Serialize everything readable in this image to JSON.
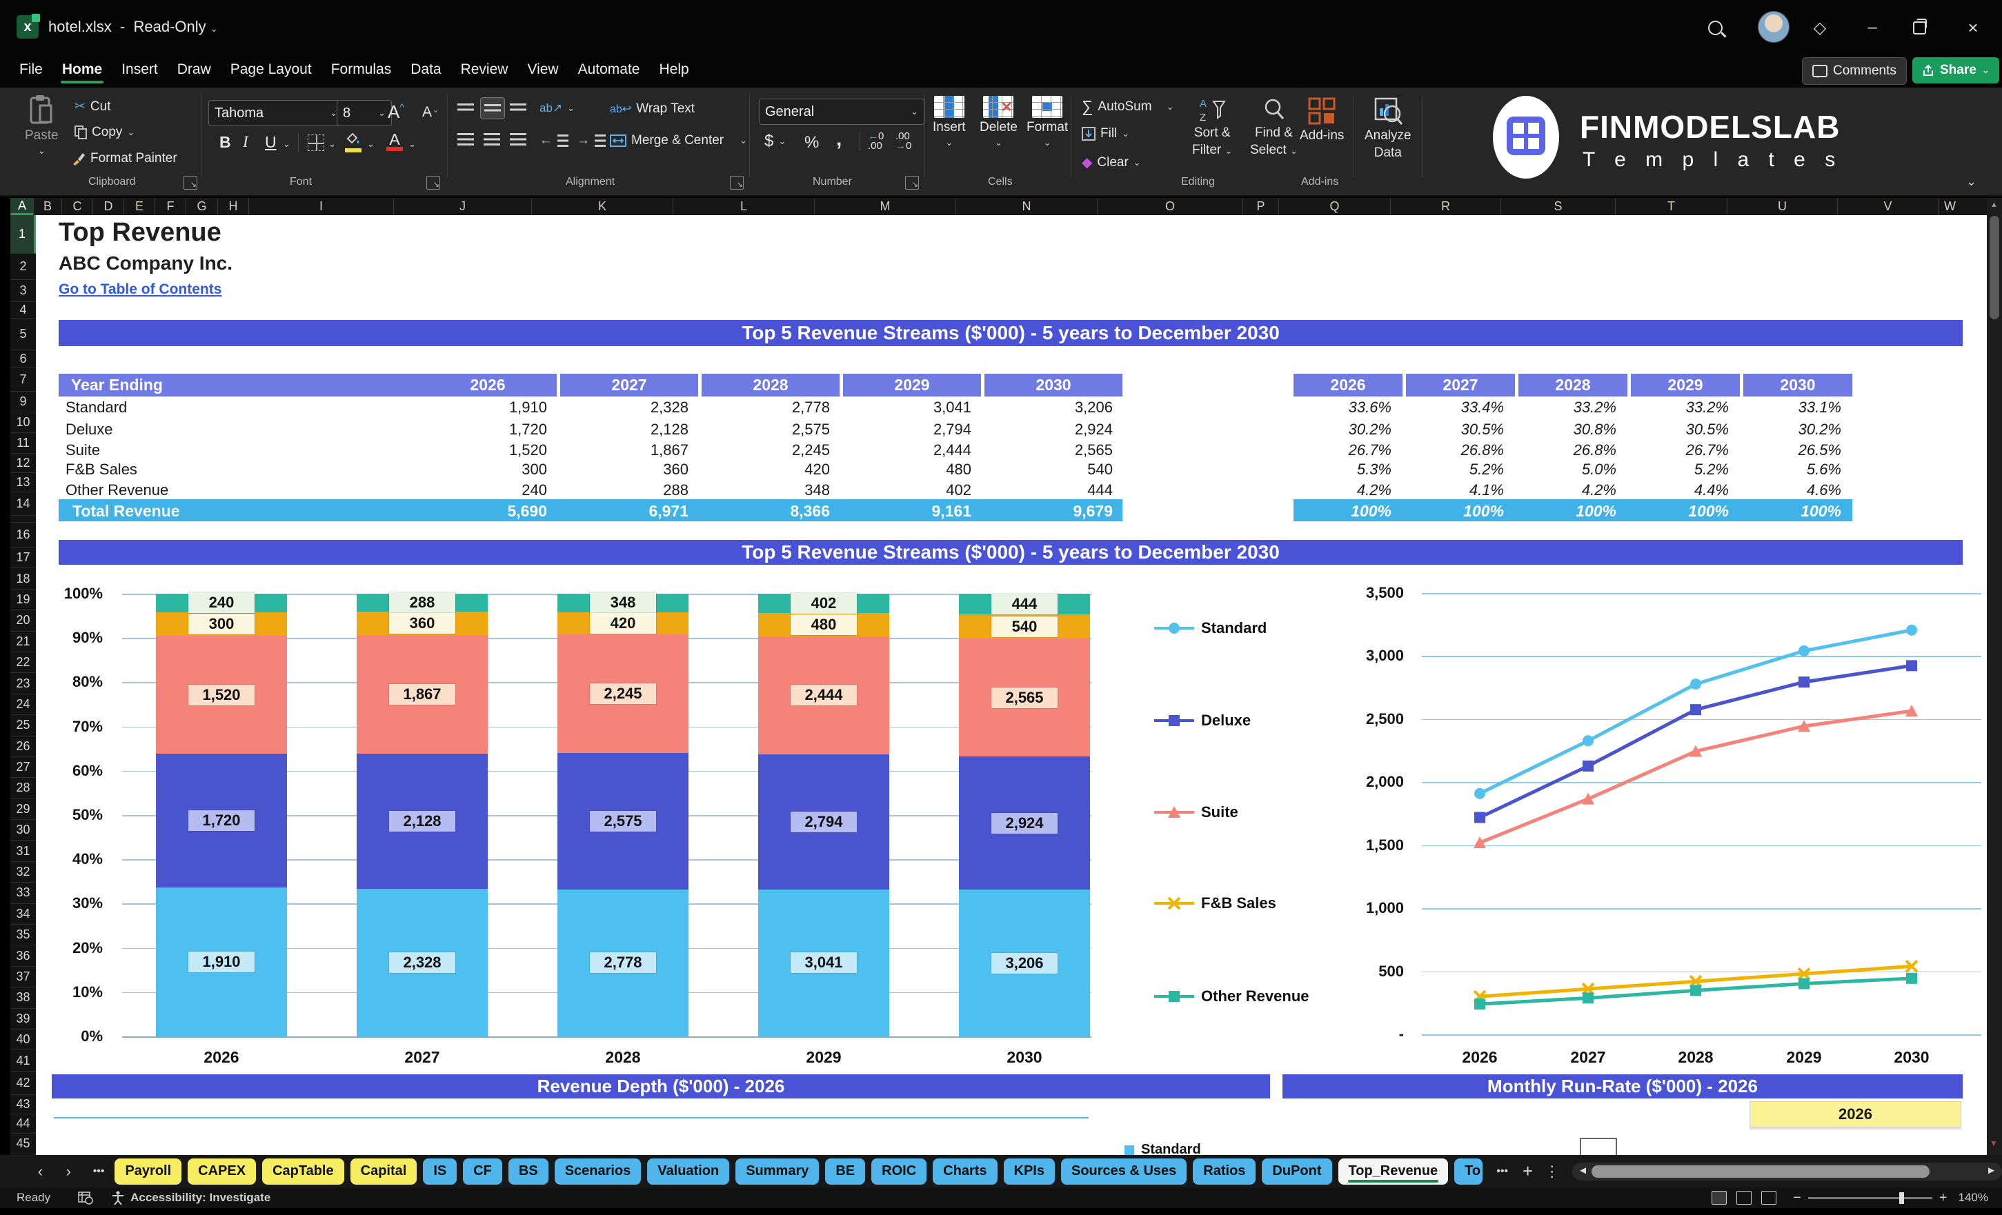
{
  "window": {
    "file_name": "hotel.xlsx",
    "separator": "-",
    "mode": "Read-Only"
  },
  "menu_bar": {
    "tabs": [
      "File",
      "Home",
      "Insert",
      "Draw",
      "Page Layout",
      "Formulas",
      "Data",
      "Review",
      "View",
      "Automate",
      "Help"
    ],
    "active_tab": "Home",
    "comments_label": "Comments",
    "share_label": "Share"
  },
  "ribbon": {
    "paste": "Paste",
    "cut": "Cut",
    "copy": "Copy",
    "format_painter": "Format Painter",
    "clipboard_group": "Clipboard",
    "font_name": "Tahoma",
    "font_size": "8",
    "font_group": "Font",
    "bold": "B",
    "italic": "I",
    "underline": "U",
    "wrap_text": "Wrap Text",
    "merge_center": "Merge & Center",
    "alignment_group": "Alignment",
    "number_format": "General",
    "number_group": "Number",
    "insert": "Insert",
    "delete": "Delete",
    "format": "Format",
    "cells_group": "Cells",
    "autosum": "AutoSum",
    "fill": "Fill",
    "clear": "Clear",
    "sort_filter_1": "Sort &",
    "sort_filter_2": "Filter",
    "find_select_1": "Find &",
    "find_select_2": "Select",
    "editing_group": "Editing",
    "addins": "Add-ins",
    "addins_group": "Add-ins",
    "analyze_1": "Analyze",
    "analyze_2": "Data",
    "logo_title": "FINMODELSLAB",
    "logo_subtitle": "T e m p l a t e s"
  },
  "grid": {
    "columns": [
      "A",
      "B",
      "C",
      "D",
      "E",
      "F",
      "G",
      "H",
      "I",
      "J",
      "K",
      "L",
      "M",
      "N",
      "O",
      "P",
      "Q",
      "R",
      "S",
      "T",
      "U",
      "V",
      "W"
    ],
    "selected_column": "A",
    "rows": [
      1,
      2,
      3,
      4,
      5,
      6,
      7,
      9,
      10,
      11,
      12,
      13,
      14,
      15,
      16,
      17,
      18,
      19,
      20,
      21,
      22,
      23,
      24,
      25,
      26,
      27,
      28,
      29,
      30,
      31,
      32,
      33,
      34,
      35,
      36,
      37,
      38,
      39,
      40,
      41,
      42,
      43,
      44,
      45
    ],
    "selected_row": 1
  },
  "sheet": {
    "title": "Top Revenue",
    "company": "ABC Company Inc.",
    "toc_link": "Go to Table of Contents",
    "section1_title": "Top 5 Revenue Streams ($'000) - 5 years to December 2030",
    "section2_title": "Top 5 Revenue Streams ($'000) - 5 years to December 2030",
    "section3_title": "Revenue Depth ($'000) - 2026",
    "section4_title": "Monthly Run-Rate ($'000) - 2026",
    "year_highlight": "2026",
    "partial_legend": "Standard",
    "banner_color": "#4a53d5",
    "header_color": "#707ae3",
    "total_color": "#3fb3e8"
  },
  "revenue_table": {
    "header_label": "Year Ending",
    "years": [
      "2026",
      "2027",
      "2028",
      "2029",
      "2030"
    ],
    "rows": [
      {
        "label": "Standard",
        "values": [
          "1,910",
          "2,328",
          "2,778",
          "3,041",
          "3,206"
        ]
      },
      {
        "label": "Deluxe",
        "values": [
          "1,720",
          "2,128",
          "2,575",
          "2,794",
          "2,924"
        ]
      },
      {
        "label": "Suite",
        "values": [
          "1,520",
          "1,867",
          "2,245",
          "2,444",
          "2,565"
        ]
      },
      {
        "label": "F&B Sales",
        "values": [
          "300",
          "360",
          "420",
          "480",
          "540"
        ]
      },
      {
        "label": "Other Revenue",
        "values": [
          "240",
          "288",
          "348",
          "402",
          "444"
        ]
      }
    ],
    "total": {
      "label": "Total Revenue",
      "values": [
        "5,690",
        "6,971",
        "8,366",
        "9,161",
        "9,679"
      ]
    }
  },
  "percent_table": {
    "years": [
      "2026",
      "2027",
      "2028",
      "2029",
      "2030"
    ],
    "rows": [
      [
        "33.6%",
        "33.4%",
        "33.2%",
        "33.2%",
        "33.1%"
      ],
      [
        "30.2%",
        "30.5%",
        "30.8%",
        "30.5%",
        "30.2%"
      ],
      [
        "26.7%",
        "26.8%",
        "26.8%",
        "26.7%",
        "26.5%"
      ],
      [
        "5.3%",
        "5.2%",
        "5.0%",
        "5.2%",
        "5.6%"
      ],
      [
        "4.2%",
        "4.1%",
        "4.2%",
        "4.4%",
        "4.6%"
      ]
    ],
    "total": [
      "100%",
      "100%",
      "100%",
      "100%",
      "100%"
    ]
  },
  "chart_data": [
    {
      "type": "bar",
      "subtype": "stacked-100pct",
      "title": "Top 5 Revenue Streams ($'000) - 5 years to December 2030",
      "categories": [
        "2026",
        "2027",
        "2028",
        "2029",
        "2030"
      ],
      "series": [
        {
          "name": "Standard",
          "values": [
            1910,
            2328,
            2778,
            3041,
            3206
          ],
          "pct": [
            33.6,
            33.4,
            33.2,
            33.2,
            33.1
          ],
          "labels": [
            "1,910",
            "2,328",
            "2,778",
            "3,041",
            "3,206"
          ],
          "color": "#4ec0ef",
          "label_bg": "#c6e9fa"
        },
        {
          "name": "Deluxe",
          "values": [
            1720,
            2128,
            2575,
            2794,
            2924
          ],
          "pct": [
            30.2,
            30.5,
            30.8,
            30.5,
            30.2
          ],
          "labels": [
            "1,720",
            "2,128",
            "2,575",
            "2,794",
            "2,924"
          ],
          "color": "#4a54ce",
          "label_bg": "#b5bcf1"
        },
        {
          "name": "Suite",
          "values": [
            1520,
            1867,
            2245,
            2444,
            2565
          ],
          "pct": [
            26.7,
            26.8,
            26.8,
            26.7,
            26.5
          ],
          "labels": [
            "1,520",
            "1,867",
            "2,245",
            "2,444",
            "2,565"
          ],
          "color": "#f5837a",
          "label_bg": "#fcdfca"
        },
        {
          "name": "F&B Sales",
          "values": [
            300,
            360,
            420,
            480,
            540
          ],
          "pct": [
            5.3,
            5.2,
            5.0,
            5.2,
            5.6
          ],
          "labels": [
            "300",
            "360",
            "420",
            "480",
            "540"
          ],
          "color": "#f0a812",
          "label_bg": "#fdf6df"
        },
        {
          "name": "Other Revenue",
          "values": [
            240,
            288,
            348,
            402,
            444
          ],
          "pct": [
            4.2,
            4.1,
            4.2,
            4.4,
            4.6
          ],
          "labels": [
            "240",
            "288",
            "348",
            "402",
            "444"
          ],
          "color": "#2bb7a2",
          "label_bg": "#e9f4e4"
        }
      ],
      "y_ticks": [
        "100%",
        "90%",
        "80%",
        "70%",
        "60%",
        "50%",
        "40%",
        "30%",
        "20%",
        "10%",
        "0%"
      ],
      "ylim": [
        0,
        100
      ],
      "grid": true,
      "legend_position": "none"
    },
    {
      "type": "line",
      "categories": [
        "2026",
        "2027",
        "2028",
        "2029",
        "2030"
      ],
      "series": [
        {
          "name": "Standard",
          "values": [
            1910,
            2328,
            2778,
            3041,
            3206
          ],
          "color": "#52c1ec",
          "marker": "circle"
        },
        {
          "name": "Deluxe",
          "values": [
            1720,
            2128,
            2575,
            2794,
            2924
          ],
          "color": "#4a54ce",
          "marker": "square"
        },
        {
          "name": "Suite",
          "values": [
            1520,
            1867,
            2245,
            2444,
            2565
          ],
          "color": "#f5837a",
          "marker": "triangle"
        },
        {
          "name": "F&B Sales",
          "values": [
            300,
            360,
            420,
            480,
            540
          ],
          "color": "#f0b400",
          "marker": "x"
        },
        {
          "name": "Other Revenue",
          "values": [
            240,
            288,
            348,
            402,
            444
          ],
          "color": "#2bb7a2",
          "marker": "square"
        }
      ],
      "y_ticks": [
        "3,500",
        "3,000",
        "2,500",
        "2,000",
        "1,500",
        "1,000",
        "500",
        "-"
      ],
      "ylim": [
        0,
        3500
      ],
      "grid": true,
      "legend_position": "left"
    }
  ],
  "sheet_tabs": {
    "nav_left": "‹",
    "nav_right": "›",
    "overflow_left": "•••",
    "tabs": [
      {
        "label": "Payroll",
        "color": "yellow"
      },
      {
        "label": "CAPEX",
        "color": "yellow"
      },
      {
        "label": "CapTable",
        "color": "yellow"
      },
      {
        "label": "Capital",
        "color": "yellow"
      },
      {
        "label": "IS",
        "color": "blue"
      },
      {
        "label": "CF",
        "color": "blue"
      },
      {
        "label": "BS",
        "color": "blue"
      },
      {
        "label": "Scenarios",
        "color": "blue"
      },
      {
        "label": "Valuation",
        "color": "blue"
      },
      {
        "label": "Summary",
        "color": "blue"
      },
      {
        "label": "BE",
        "color": "blue"
      },
      {
        "label": "ROIC",
        "color": "blue"
      },
      {
        "label": "Charts",
        "color": "blue"
      },
      {
        "label": "KPIs",
        "color": "blue"
      },
      {
        "label": "Sources & Uses",
        "color": "blue"
      },
      {
        "label": "Ratios",
        "color": "blue"
      },
      {
        "label": "DuPont",
        "color": "blue"
      },
      {
        "label": "Top_Revenue",
        "color": "active"
      },
      {
        "label": "To",
        "color": "blue",
        "clipped": true
      }
    ],
    "overflow_right": "•••",
    "add_sheet": "+",
    "tab_menu": "⋮"
  },
  "status_bar": {
    "ready": "Ready",
    "accessibility": "Accessibility: Investigate",
    "zoom_out": "−",
    "zoom_in": "+",
    "zoom": "140%"
  }
}
